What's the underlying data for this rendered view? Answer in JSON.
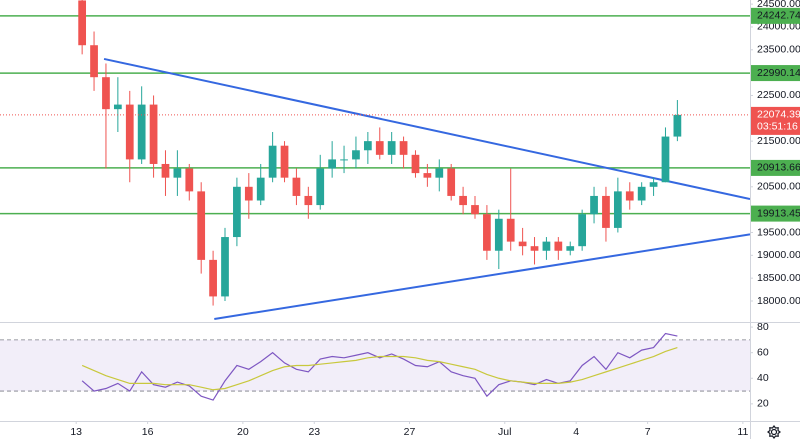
{
  "chart_data": [
    {
      "type": "candlestick",
      "x": [
        13.25,
        13.75,
        14.25,
        14.75,
        15.25,
        15.75,
        16.25,
        16.75,
        17.25,
        17.75,
        18.25,
        18.75,
        19.25,
        19.75,
        20.25,
        20.75,
        21.25,
        21.75,
        22.25,
        22.75,
        23.25,
        23.75,
        24.25,
        24.75,
        25.25,
        25.75,
        26.25,
        26.75,
        27.25,
        27.75,
        28.25,
        28.75,
        29.25,
        29.75,
        30.25,
        30.75,
        31.25,
        31.75,
        32.25,
        32.75,
        33.25,
        33.75,
        34.25,
        34.75,
        35.25,
        35.75,
        36.25,
        36.75,
        37.25,
        37.75,
        38.25
      ],
      "open": [
        24580,
        23600,
        22900,
        22200,
        22300,
        21100,
        22300,
        21000,
        20700,
        20900,
        20400,
        18900,
        18100,
        19400,
        20500,
        20200,
        20700,
        21400,
        20700,
        20300,
        20100,
        20900,
        21100,
        21100,
        21300,
        21500,
        21200,
        21500,
        21200,
        20800,
        20700,
        20900,
        20300,
        20100,
        19900,
        19100,
        19800,
        19300,
        19200,
        19100,
        19300,
        19100,
        19200,
        19900,
        20300,
        19600,
        20400,
        20200,
        20500,
        20600,
        21600
      ],
      "high": [
        24600,
        23900,
        23200,
        22900,
        22600,
        22700,
        22500,
        21300,
        21300,
        21000,
        20600,
        19100,
        19600,
        20700,
        20800,
        21000,
        21700,
        21500,
        20900,
        20500,
        21200,
        21500,
        21400,
        21600,
        21700,
        21800,
        21700,
        21600,
        21300,
        21000,
        21100,
        21000,
        20500,
        20300,
        20100,
        20000,
        20900,
        19600,
        19400,
        19400,
        19400,
        19300,
        20000,
        20500,
        20500,
        20700,
        20600,
        20600,
        20700,
        21800,
        22400
      ],
      "low": [
        23400,
        22600,
        20900,
        21700,
        20600,
        21000,
        20700,
        20300,
        20300,
        20200,
        18600,
        17900,
        18000,
        19200,
        19800,
        20100,
        20600,
        20600,
        20100,
        19800,
        20000,
        20700,
        20800,
        20900,
        21000,
        21100,
        21000,
        20900,
        20700,
        20500,
        20400,
        20200,
        19900,
        19800,
        18900,
        18700,
        19100,
        19000,
        18800,
        18900,
        18900,
        19000,
        19100,
        19700,
        19300,
        19500,
        20000,
        20100,
        20300,
        20600,
        21500
      ],
      "close": [
        23600,
        22900,
        22200,
        22300,
        21100,
        22300,
        21000,
        20700,
        20900,
        20400,
        18900,
        18100,
        19400,
        20500,
        20200,
        20700,
        21400,
        20700,
        20300,
        20100,
        20900,
        21100,
        21100,
        21300,
        21500,
        21200,
        21500,
        21200,
        20800,
        20700,
        20900,
        20300,
        20100,
        19900,
        19100,
        19800,
        19300,
        19200,
        19100,
        19300,
        19100,
        19200,
        19900,
        20300,
        19600,
        20400,
        20200,
        20500,
        20600,
        21600,
        22074.39
      ],
      "up_color": "#26a69a",
      "down_color": "#ef5350",
      "xlim": [
        9.8,
        41.3
      ],
      "ylim": [
        17540,
        24590
      ],
      "yticks": [
        {
          "value": 24500,
          "label": "24500.00"
        },
        {
          "value": 24000,
          "label": "24000.00"
        },
        {
          "value": 23500,
          "label": "23500.00"
        },
        {
          "value": 22500,
          "label": "22500.00"
        },
        {
          "value": 22000,
          "label": "22000.00"
        },
        {
          "value": 21500,
          "label": "21500.00"
        },
        {
          "value": 20500,
          "label": "20500.00"
        },
        {
          "value": 19500,
          "label": "19500.00"
        },
        {
          "value": 19000,
          "label": "19000.00"
        },
        {
          "value": 18500,
          "label": "18500.00"
        },
        {
          "value": 18000,
          "label": "18000.00"
        }
      ],
      "levels": [
        24242.74,
        22990.14,
        20913.66,
        19913.45
      ],
      "level_color": "#4caf50",
      "trendlines": [
        {
          "x": [
            14.17,
            41.3
          ],
          "values": [
            23300,
            20233
          ],
          "color": "#3568e0"
        },
        {
          "x": [
            18.8,
            41.3
          ],
          "values": [
            17606,
            19460
          ],
          "color": "#3568e0"
        }
      ],
      "countdown": "03:51:16"
    },
    {
      "type": "line",
      "x": [
        13.25,
        13.75,
        14.25,
        14.75,
        15.25,
        15.75,
        16.25,
        16.75,
        17.25,
        17.75,
        18.25,
        18.75,
        19.25,
        19.75,
        20.25,
        20.75,
        21.25,
        21.75,
        22.25,
        22.75,
        23.25,
        23.75,
        24.25,
        24.75,
        25.25,
        25.75,
        26.25,
        26.75,
        27.25,
        27.75,
        28.25,
        28.75,
        29.25,
        29.75,
        30.25,
        30.75,
        31.25,
        31.75,
        32.25,
        32.75,
        33.25,
        33.75,
        34.25,
        34.75,
        35.25,
        35.75,
        36.25,
        36.75,
        37.25,
        37.75,
        38.25
      ],
      "series": [
        {
          "color": "#7e57c2",
          "values": [
            38,
            30,
            32,
            36,
            30,
            45,
            35,
            33,
            37,
            34,
            26,
            23,
            38,
            50,
            47,
            53,
            60,
            52,
            47,
            45,
            55,
            57,
            56,
            58,
            60,
            56,
            59,
            55,
            50,
            49,
            53,
            45,
            42,
            40,
            26,
            35,
            38,
            37,
            35,
            39,
            36,
            38,
            50,
            57,
            47,
            60,
            56,
            62,
            64,
            75,
            73
          ]
        },
        {
          "color": "#c8c83c",
          "values": [
            50,
            46,
            42,
            39,
            36,
            36,
            36,
            35,
            35,
            35,
            33,
            31,
            32,
            35,
            38,
            42,
            46,
            49,
            50,
            50,
            51,
            52,
            53,
            54,
            56,
            57,
            57,
            57,
            56,
            54,
            53,
            51,
            49,
            47,
            43,
            40,
            38,
            37,
            36,
            36,
            36,
            37,
            39,
            42,
            45,
            48,
            51,
            54,
            57,
            61,
            64
          ]
        }
      ],
      "xlim": [
        9.8,
        41.3
      ],
      "ylim": [
        6.6,
        83.2
      ],
      "yticks": [
        80,
        60,
        40,
        20
      ],
      "band": [
        30,
        70
      ],
      "band_color": "#7e57c2",
      "xticks": [
        13,
        16,
        20,
        23,
        27,
        {
          "value": 31,
          "label": "Jul"
        },
        {
          "value": 34,
          "label": "4"
        },
        {
          "value": 37,
          "label": "7"
        },
        {
          "value": 41,
          "label": "11"
        }
      ]
    }
  ]
}
